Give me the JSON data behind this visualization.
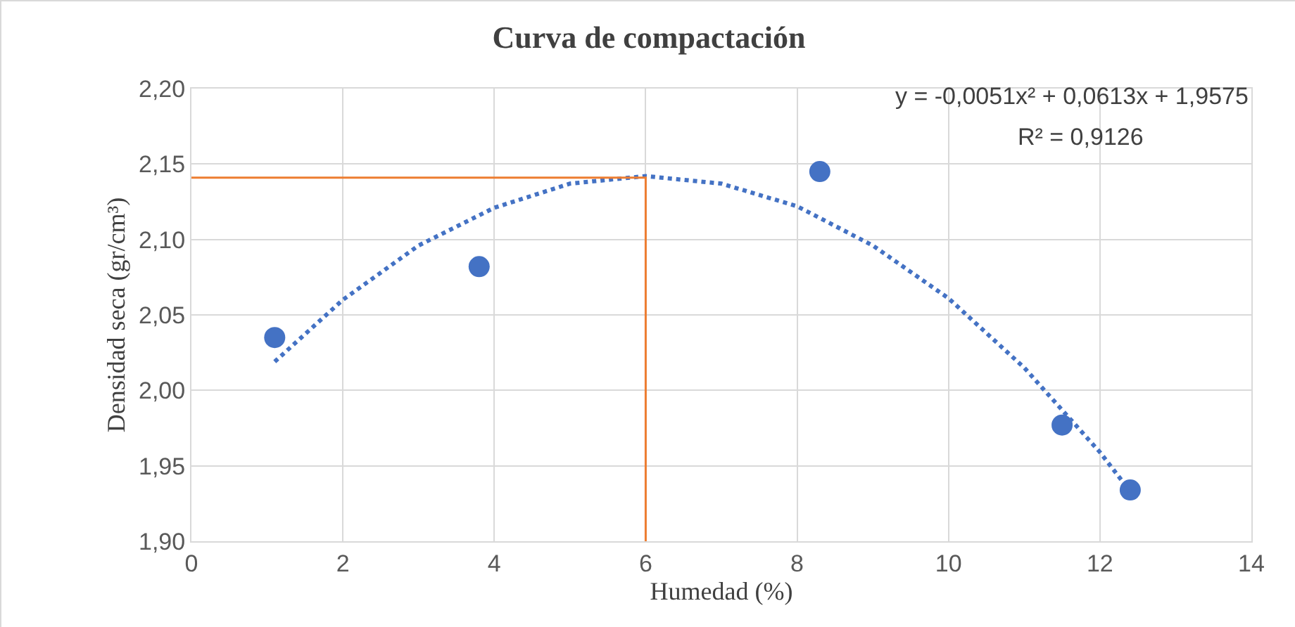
{
  "chart_data": {
    "type": "scatter",
    "title": "Curva de compactación",
    "xlabel": "Humedad (%)",
    "ylabel": "Densidad seca (gr/cm³)",
    "xlim": [
      0,
      14
    ],
    "xticks": [
      0,
      2,
      4,
      6,
      8,
      10,
      12,
      14
    ],
    "ylim": [
      1.9,
      2.2
    ],
    "yticks": [
      {
        "value": 1.9,
        "label": "1,90"
      },
      {
        "value": 1.95,
        "label": "1,95"
      },
      {
        "value": 2.0,
        "label": "2,00"
      },
      {
        "value": 2.05,
        "label": "2,05"
      },
      {
        "value": 2.1,
        "label": "2,10"
      },
      {
        "value": 2.15,
        "label": "2,15"
      },
      {
        "value": 2.2,
        "label": "2,20"
      }
    ],
    "grid": true,
    "legend": false,
    "series": [
      {
        "color": "#4472c4",
        "marker": "circle",
        "x": [
          1.1,
          3.8,
          8.3,
          11.5,
          12.4
        ],
        "values": [
          2.035,
          2.082,
          2.145,
          1.977,
          1.934
        ]
      },
      {
        "type": "line",
        "color": "#4472c4",
        "line_style": "dotted",
        "marker": "none",
        "x": [
          1.1,
          2,
          3,
          4,
          5,
          6,
          7,
          8,
          9,
          10,
          11,
          12,
          12.4
        ],
        "values": [
          2.019,
          2.06,
          2.096,
          2.121,
          2.137,
          2.142,
          2.137,
          2.122,
          2.096,
          2.061,
          2.015,
          1.959,
          1.933
        ]
      },
      {
        "type": "line",
        "color": "#ed7d31",
        "line_style": "solid",
        "marker": "none",
        "x": [
          0,
          6,
          6
        ],
        "values": [
          2.141,
          2.141,
          1.9
        ]
      }
    ],
    "annotations": [
      "y = -0,0051x² + 0,0613x + 1,9575",
      "R² = 0,9126"
    ]
  }
}
